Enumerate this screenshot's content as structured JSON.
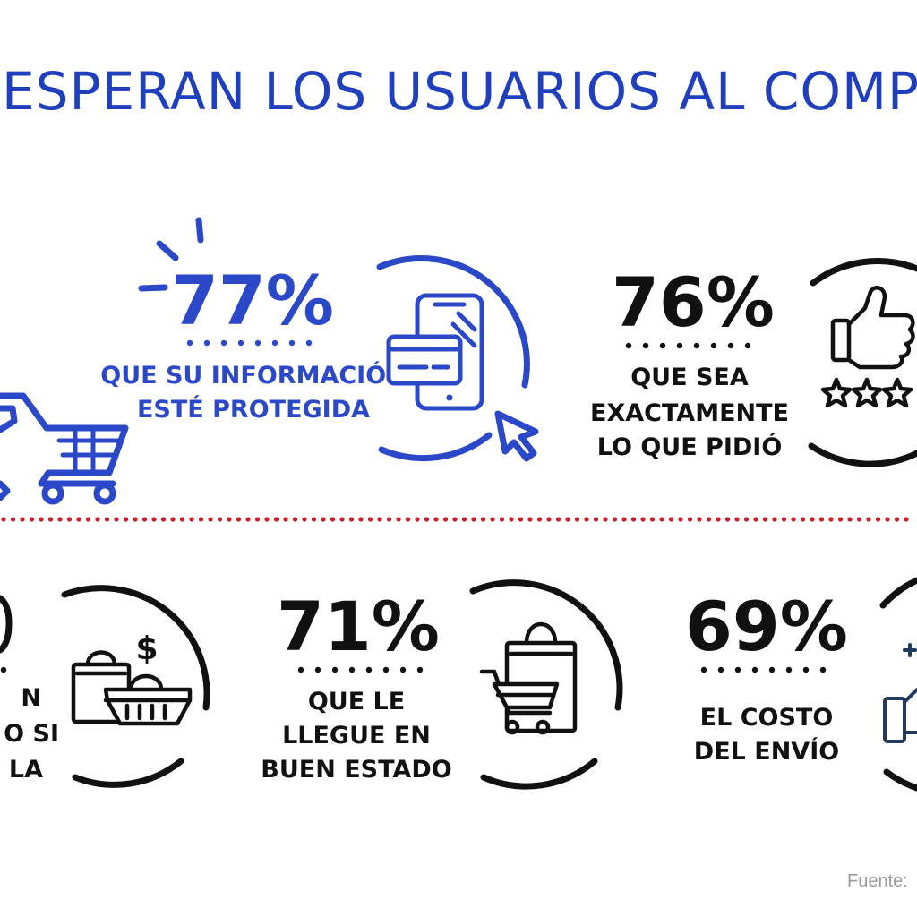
{
  "title": "ESPERAN LOS USUARIOS AL COMPRAR POR INTER",
  "colors": {
    "accent_blue": "#2a48c8",
    "title_blue": "#1f3fbf",
    "text_black": "#111111",
    "divider_red": "#c8202a",
    "source_gray": "#9a9a9a"
  },
  "stats": [
    {
      "percent": "77%",
      "caption_lines": [
        "QUE SU INFORMACIÓN",
        "ESTÉ PROTEGIDA"
      ],
      "icon": "secure-phone-payment-icon",
      "color": "#2a48c8"
    },
    {
      "percent": "76%",
      "caption_lines": [
        "QUE SEA",
        "EXACTAMENTE",
        "LO QUE PIDIÓ"
      ],
      "icon": "thumbs-up-rating-icon",
      "color": "#111111"
    },
    {
      "percent": "",
      "caption_lines": [
        "N",
        "O SI",
        "LA"
      ],
      "icon": "shopping-basket-price-icon",
      "color": "#111111"
    },
    {
      "percent": "71%",
      "caption_lines": [
        "QUE LE",
        "LLEGUE EN",
        "BUEN ESTADO"
      ],
      "icon": "shopping-cart-bag-icon",
      "color": "#111111"
    },
    {
      "percent": "69%",
      "caption_lines": [
        "EL COSTO",
        "DEL ENVÍO"
      ],
      "icon": "shipping-cost-icon",
      "color": "#111111"
    }
  ],
  "left_icon": "shopping-cart-icon",
  "source_label": "Fuente:"
}
